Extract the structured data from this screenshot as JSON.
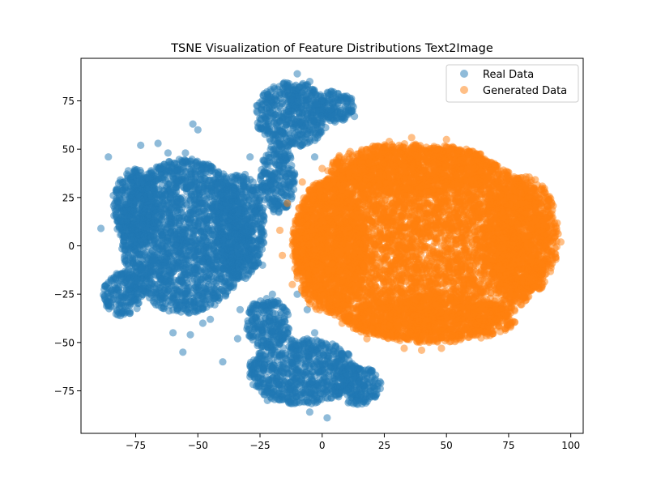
{
  "chart_data": {
    "type": "scatter",
    "title": "TSNE Visualization of Feature Distributions Text2Image",
    "xlabel": "",
    "ylabel": "",
    "xlim": [
      -97,
      105
    ],
    "ylim": [
      -97,
      97
    ],
    "xticks": [
      -75,
      -50,
      -25,
      0,
      25,
      50,
      75,
      100
    ],
    "yticks": [
      -75,
      -50,
      -25,
      0,
      25,
      50,
      75
    ],
    "xtick_labels": [
      "−75",
      "−50",
      "−25",
      "0",
      "25",
      "50",
      "75",
      "100"
    ],
    "ytick_labels": [
      "−75",
      "−50",
      "−25",
      "0",
      "25",
      "50",
      "75"
    ],
    "grid": false,
    "legend": "top-right",
    "series": [
      {
        "name": "Real Data",
        "color": "#1f77b4",
        "alpha": 0.5,
        "clusters": [
          {
            "cx": -55,
            "cy": 5,
            "rx": 26,
            "ry": 40
          },
          {
            "cx": -75,
            "cy": 20,
            "rx": 9,
            "ry": 20
          },
          {
            "cx": -80,
            "cy": -25,
            "rx": 8,
            "ry": 12
          },
          {
            "cx": -33,
            "cy": 10,
            "rx": 10,
            "ry": 28
          },
          {
            "cx": -12,
            "cy": 68,
            "rx": 15,
            "ry": 17
          },
          {
            "cx": 5,
            "cy": 72,
            "rx": 8,
            "ry": 8
          },
          {
            "cx": -18,
            "cy": 35,
            "rx": 7,
            "ry": 18
          },
          {
            "cx": -8,
            "cy": -65,
            "rx": 22,
            "ry": 17
          },
          {
            "cx": 14,
            "cy": -72,
            "rx": 10,
            "ry": 10
          },
          {
            "cx": -22,
            "cy": -40,
            "rx": 9,
            "ry": 13
          }
        ],
        "points": [
          [
            -89,
            9
          ],
          [
            -86,
            46
          ],
          [
            -85,
            -31
          ],
          [
            -84,
            26
          ],
          [
            -73,
            52
          ],
          [
            -66,
            53
          ],
          [
            -62,
            48
          ],
          [
            -55,
            48
          ],
          [
            -52,
            63
          ],
          [
            -50,
            60
          ],
          [
            -56,
            -55
          ],
          [
            -53,
            -46
          ],
          [
            -45,
            -38
          ],
          [
            -33,
            -33
          ],
          [
            -10,
            89
          ],
          [
            10,
            75
          ],
          [
            13,
            67
          ],
          [
            -22,
            60
          ],
          [
            -29,
            46
          ],
          [
            -3,
            46
          ],
          [
            -36,
            26
          ],
          [
            -24,
            -10
          ],
          [
            -20,
            -25
          ],
          [
            -10,
            -25
          ],
          [
            -6,
            -33
          ],
          [
            -3,
            -45
          ],
          [
            -34,
            -48
          ],
          [
            -40,
            -60
          ],
          [
            17,
            -70
          ],
          [
            19,
            -78
          ],
          [
            2,
            -89
          ],
          [
            -5,
            -86
          ],
          [
            -22,
            -80
          ],
          [
            -78,
            -10
          ],
          [
            -80,
            0
          ],
          [
            -60,
            -45
          ],
          [
            -48,
            -40
          ],
          [
            -14,
            82
          ],
          [
            -5,
            85
          ],
          [
            -20,
            72
          ]
        ]
      },
      {
        "name": "Generated Data",
        "color": "#ff7f0e",
        "alpha": 0.5,
        "clusters": [
          {
            "cx": 40,
            "cy": 1,
            "rx": 52,
            "ry": 50
          },
          {
            "cx": 36,
            "cy": 40,
            "rx": 34,
            "ry": 13
          },
          {
            "cx": 44,
            "cy": -38,
            "rx": 34,
            "ry": 12
          },
          {
            "cx": 80,
            "cy": 5,
            "rx": 15,
            "ry": 32
          },
          {
            "cx": 3,
            "cy": 0,
            "rx": 15,
            "ry": 35
          }
        ],
        "points": [
          [
            36,
            56
          ],
          [
            50,
            55
          ],
          [
            20,
            50
          ],
          [
            66,
            43
          ],
          [
            83,
            25
          ],
          [
            94,
            10
          ],
          [
            96,
            2
          ],
          [
            94,
            -7
          ],
          [
            87,
            -18
          ],
          [
            75,
            -32
          ],
          [
            62,
            -44
          ],
          [
            48,
            -53
          ],
          [
            33,
            -53
          ],
          [
            18,
            -48
          ],
          [
            8,
            -40
          ],
          [
            -5,
            -30
          ],
          [
            -12,
            -20
          ],
          [
            -16,
            -5
          ],
          [
            -17,
            8
          ],
          [
            -14,
            22
          ],
          [
            -8,
            33
          ],
          [
            0,
            40
          ],
          [
            10,
            46
          ],
          [
            27,
            54
          ],
          [
            58,
            50
          ],
          [
            75,
            38
          ],
          [
            90,
            18
          ],
          [
            92,
            -10
          ],
          [
            70,
            -38
          ],
          [
            40,
            -54
          ]
        ]
      }
    ]
  }
}
